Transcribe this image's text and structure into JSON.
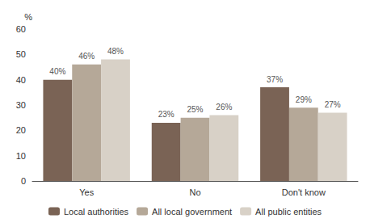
{
  "chart_data": {
    "type": "bar",
    "ylabel": "%",
    "categories": [
      "Yes",
      "No",
      "Don't know"
    ],
    "series": [
      {
        "name": "Local authorities",
        "color": "#7a6355",
        "values": [
          40,
          23,
          37
        ],
        "value_labels": [
          "40%",
          "23%",
          "37%"
        ]
      },
      {
        "name": "All local government",
        "color": "#b5a898",
        "values": [
          46,
          25,
          29
        ],
        "value_labels": [
          "46%",
          "25%",
          "29%"
        ]
      },
      {
        "name": "All public entities",
        "color": "#d8d1c7",
        "values": [
          48,
          26,
          27
        ],
        "value_labels": [
          "48%",
          "26%",
          "27%"
        ]
      }
    ],
    "ylim": [
      0,
      60
    ],
    "yticks": [
      0,
      10,
      20,
      30,
      40,
      50,
      60
    ],
    "grid": false,
    "legend": "bottom",
    "data_labels": true
  }
}
